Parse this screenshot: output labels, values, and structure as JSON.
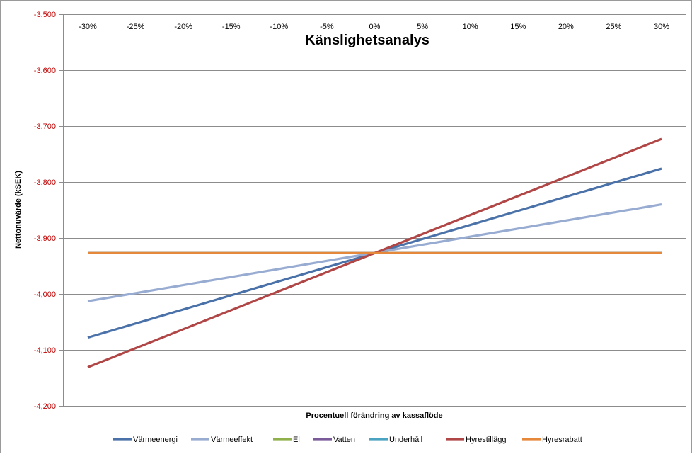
{
  "chart_data": {
    "type": "line",
    "title": "Känslighetsanalys",
    "xlabel": "Procentuell förändring av kassaflöde",
    "ylabel": "Nettonuvärde (kSEK)",
    "categories": [
      "-30%",
      "-25%",
      "-20%",
      "-15%",
      "-10%",
      "-5%",
      "0%",
      "5%",
      "10%",
      "15%",
      "20%",
      "25%",
      "30%"
    ],
    "x": [
      -30,
      30
    ],
    "ylim": [
      -4200,
      -3500
    ],
    "yticks": [
      -3500,
      -3600,
      -3700,
      -3800,
      -3900,
      -4000,
      -4100,
      -4200
    ],
    "ytick_labels": [
      "-3,500",
      "-3,600",
      "-3,700",
      "-3,800",
      "-3,900",
      "-4,000",
      "-4,100",
      "-4,200"
    ],
    "grid": true,
    "legend_position": "bottom",
    "series": [
      {
        "name": "Värmeenergi",
        "color": "#4a72a8",
        "values": [
          -4078,
          -3776
        ]
      },
      {
        "name": "Värmeeffekt",
        "color": "#98acd2",
        "values": [
          -4013,
          -3840
        ]
      },
      {
        "name": "El",
        "color": "#8fb04a",
        "values": [
          -3927,
          -3927
        ]
      },
      {
        "name": "Vatten",
        "color": "#7a5a98",
        "values": [
          -3927,
          -3927
        ]
      },
      {
        "name": "Underhåll",
        "color": "#4aa3c0",
        "values": [
          -3927,
          -3927
        ]
      },
      {
        "name": "Hyrestillägg",
        "color": "#b04646",
        "values": [
          -4131,
          -3723
        ]
      },
      {
        "name": "Hyresrabatt",
        "color": "#e6883a",
        "values": [
          -3927,
          -3927
        ]
      }
    ]
  }
}
